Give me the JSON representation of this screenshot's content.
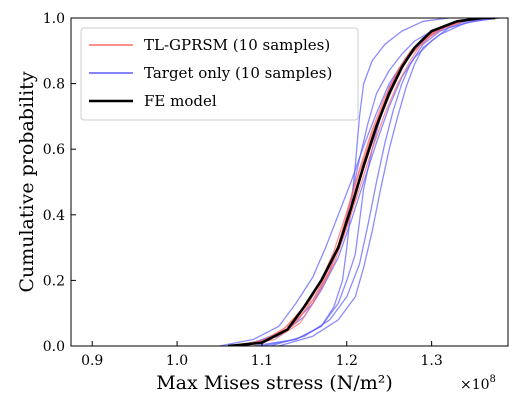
{
  "chart_data": {
    "type": "line",
    "xlabel": "Max Mises stress (N/m²)",
    "ylabel": "Cumulative probability",
    "x_multiplier_label": "×10",
    "x_multiplier_exponent": "8",
    "xlim": [
      0.875,
      1.39
    ],
    "ylim": [
      0.0,
      1.0
    ],
    "x_ticks": [
      0.9,
      1.0,
      1.1,
      1.2,
      1.3
    ],
    "x_tick_labels": [
      "0.9",
      "1.0",
      "1.1",
      "1.2",
      "1.3"
    ],
    "y_ticks": [
      0.0,
      0.2,
      0.4,
      0.6,
      0.8,
      1.0
    ],
    "y_tick_labels": [
      "0.0",
      "0.2",
      "0.4",
      "0.6",
      "0.8",
      "1.0"
    ],
    "legend_position": "top-left",
    "legend": [
      {
        "label": "TL-GPRSM (10 samples)",
        "color": "#ff6b6b"
      },
      {
        "label": "Target only (10 samples)",
        "color": "#5b5bff"
      },
      {
        "label": "FE model",
        "color": "#000000"
      }
    ],
    "series": [
      {
        "name": "FE model",
        "group": "fe",
        "color": "#000000",
        "x": [
          1.06,
          1.1,
          1.13,
          1.15,
          1.17,
          1.19,
          1.205,
          1.22,
          1.235,
          1.25,
          1.265,
          1.28,
          1.3,
          1.33,
          1.36,
          1.375
        ],
        "y": [
          0.0,
          0.01,
          0.05,
          0.12,
          0.2,
          0.3,
          0.42,
          0.55,
          0.67,
          0.77,
          0.85,
          0.91,
          0.96,
          0.99,
          1.0,
          1.0
        ]
      },
      {
        "group": "tl",
        "color": "#ff6b6b",
        "x": [
          1.07,
          1.11,
          1.14,
          1.16,
          1.18,
          1.195,
          1.21,
          1.225,
          1.24,
          1.255,
          1.27,
          1.285,
          1.31,
          1.34,
          1.37
        ],
        "y": [
          0.0,
          0.02,
          0.07,
          0.14,
          0.24,
          0.34,
          0.46,
          0.58,
          0.7,
          0.79,
          0.87,
          0.92,
          0.97,
          0.995,
          1.0
        ]
      },
      {
        "group": "tl",
        "color": "#ff6b6b",
        "x": [
          1.06,
          1.1,
          1.13,
          1.155,
          1.175,
          1.19,
          1.2,
          1.215,
          1.23,
          1.245,
          1.26,
          1.28,
          1.305,
          1.335,
          1.365
        ],
        "y": [
          0.0,
          0.015,
          0.06,
          0.13,
          0.22,
          0.31,
          0.4,
          0.53,
          0.65,
          0.75,
          0.84,
          0.9,
          0.96,
          0.99,
          1.0
        ]
      },
      {
        "group": "tl",
        "color": "#ff6b6b",
        "x": [
          1.08,
          1.115,
          1.145,
          1.165,
          1.185,
          1.2,
          1.215,
          1.23,
          1.245,
          1.26,
          1.275,
          1.29,
          1.315,
          1.345,
          1.375
        ],
        "y": [
          0.0,
          0.02,
          0.07,
          0.15,
          0.25,
          0.36,
          0.48,
          0.6,
          0.71,
          0.8,
          0.87,
          0.93,
          0.97,
          0.995,
          1.0
        ]
      },
      {
        "group": "tl",
        "color": "#ff6b6b",
        "x": [
          1.07,
          1.105,
          1.135,
          1.16,
          1.18,
          1.195,
          1.21,
          1.22,
          1.235,
          1.25,
          1.265,
          1.28,
          1.3,
          1.33,
          1.36
        ],
        "y": [
          0.0,
          0.02,
          0.06,
          0.14,
          0.23,
          0.33,
          0.45,
          0.56,
          0.68,
          0.78,
          0.86,
          0.91,
          0.96,
          0.99,
          1.0
        ]
      },
      {
        "group": "tl",
        "color": "#ff6b6b",
        "x": [
          1.065,
          1.1,
          1.125,
          1.15,
          1.17,
          1.185,
          1.2,
          1.215,
          1.23,
          1.245,
          1.26,
          1.275,
          1.3,
          1.33,
          1.365
        ],
        "y": [
          0.0,
          0.01,
          0.05,
          0.12,
          0.2,
          0.29,
          0.41,
          0.54,
          0.66,
          0.76,
          0.84,
          0.9,
          0.955,
          0.99,
          1.0
        ]
      },
      {
        "group": "target",
        "color": "#5b5bff",
        "x": [
          1.08,
          1.13,
          1.16,
          1.18,
          1.195,
          1.205,
          1.215,
          1.225,
          1.235,
          1.25,
          1.265,
          1.28,
          1.3,
          1.33,
          1.36
        ],
        "y": [
          0.0,
          0.05,
          0.13,
          0.23,
          0.34,
          0.45,
          0.57,
          0.68,
          0.77,
          0.84,
          0.89,
          0.93,
          0.96,
          0.99,
          1.0
        ]
      },
      {
        "group": "target",
        "color": "#5b5bff",
        "x": [
          1.1,
          1.14,
          1.17,
          1.19,
          1.2,
          1.21,
          1.215,
          1.22,
          1.23,
          1.24,
          1.25,
          1.27,
          1.29,
          1.32,
          1.35
        ],
        "y": [
          0.0,
          0.02,
          0.06,
          0.13,
          0.2,
          0.28,
          0.38,
          0.48,
          0.6,
          0.7,
          0.79,
          0.88,
          0.94,
          0.98,
          1.0
        ]
      },
      {
        "group": "target",
        "color": "#5b5bff",
        "x": [
          1.05,
          1.09,
          1.12,
          1.14,
          1.16,
          1.175,
          1.19,
          1.205,
          1.22,
          1.235,
          1.25,
          1.27,
          1.3,
          1.33,
          1.365
        ],
        "y": [
          0.0,
          0.02,
          0.06,
          0.13,
          0.21,
          0.3,
          0.4,
          0.5,
          0.61,
          0.71,
          0.8,
          0.88,
          0.95,
          0.99,
          1.0
        ]
      },
      {
        "group": "target",
        "color": "#5b5bff",
        "x": [
          1.11,
          1.15,
          1.18,
          1.2,
          1.215,
          1.225,
          1.235,
          1.245,
          1.255,
          1.265,
          1.275,
          1.29,
          1.31,
          1.34,
          1.37
        ],
        "y": [
          0.0,
          0.03,
          0.08,
          0.15,
          0.25,
          0.37,
          0.5,
          0.62,
          0.72,
          0.8,
          0.86,
          0.92,
          0.96,
          0.99,
          1.0
        ]
      },
      {
        "group": "target",
        "color": "#5b5bff",
        "x": [
          1.09,
          1.14,
          1.17,
          1.185,
          1.195,
          1.2,
          1.205,
          1.21,
          1.215,
          1.22,
          1.23,
          1.245,
          1.265,
          1.29,
          1.32
        ],
        "y": [
          0.0,
          0.02,
          0.06,
          0.12,
          0.2,
          0.3,
          0.42,
          0.55,
          0.7,
          0.8,
          0.87,
          0.92,
          0.96,
          0.99,
          1.0
        ]
      },
      {
        "group": "target",
        "color": "#5b5bff",
        "x": [
          1.12,
          1.16,
          1.19,
          1.21,
          1.22,
          1.23,
          1.24,
          1.25,
          1.26,
          1.27,
          1.28,
          1.29,
          1.31,
          1.34,
          1.375
        ],
        "y": [
          0.0,
          0.03,
          0.08,
          0.15,
          0.24,
          0.35,
          0.48,
          0.6,
          0.7,
          0.79,
          0.86,
          0.91,
          0.95,
          0.985,
          1.0
        ]
      },
      {
        "group": "target",
        "color": "#5b5bff",
        "x": [
          1.07,
          1.12,
          1.15,
          1.17,
          1.19,
          1.205,
          1.22,
          1.235,
          1.25,
          1.265,
          1.28,
          1.3,
          1.32,
          1.35,
          1.38
        ],
        "y": [
          0.0,
          0.03,
          0.09,
          0.17,
          0.27,
          0.38,
          0.5,
          0.62,
          0.73,
          0.82,
          0.88,
          0.93,
          0.97,
          0.99,
          1.0
        ]
      }
    ]
  }
}
